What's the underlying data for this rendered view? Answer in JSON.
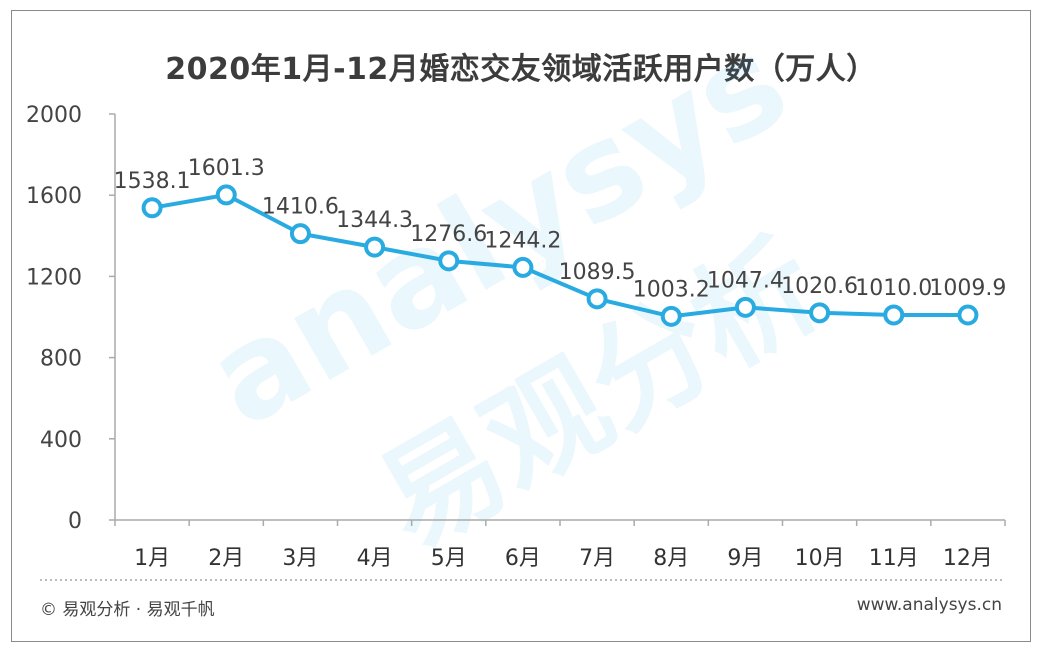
{
  "chart_data": {
    "type": "line",
    "title": "2020年1月-12月婚恋交友领域活跃用户数（万人）",
    "categories": [
      "1月",
      "2月",
      "3月",
      "4月",
      "5月",
      "6月",
      "7月",
      "8月",
      "9月",
      "10月",
      "11月",
      "12月"
    ],
    "series": [
      {
        "values": [
          1538.1,
          1601.3,
          1410.6,
          1344.3,
          1276.6,
          1244.2,
          1089.5,
          1003.2,
          1047.4,
          1020.6,
          1010.0,
          1009.9
        ]
      }
    ],
    "data_labels": [
      "1538.1",
      "1601.3",
      "1410.6",
      "1344.3",
      "1276.6",
      "1244.2",
      "1089.5",
      "1003.2",
      "1047.4",
      "1020.6",
      "1010.0",
      "1009.9"
    ],
    "yticks": [
      "0",
      "400",
      "800",
      "1200",
      "1600",
      "2000"
    ],
    "ylim": [
      0,
      2000
    ],
    "grid": false,
    "line_color": "#29abe2"
  },
  "watermark": {
    "brand": "analysys",
    "cn": "易观分析"
  },
  "footer": {
    "left": "© 易观分析 · 易观千帆",
    "right": "www.analysys.cn"
  }
}
